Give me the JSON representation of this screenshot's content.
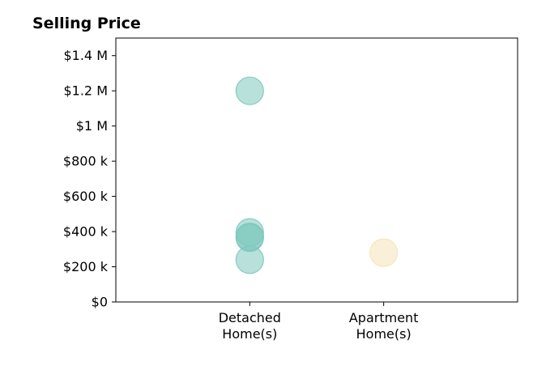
{
  "chart_data": {
    "type": "scatter",
    "title": "Selling Price",
    "xlabel": "",
    "ylabel": "",
    "categories": [
      [
        "Detached",
        "Home(s)"
      ],
      [
        "Apartment",
        "Home(s)"
      ]
    ],
    "yticks": [
      {
        "value": 0,
        "label": "$0"
      },
      {
        "value": 200000,
        "label": "$200 k"
      },
      {
        "value": 400000,
        "label": "$400 k"
      },
      {
        "value": 600000,
        "label": "$600 k"
      },
      {
        "value": 800000,
        "label": "$800 k"
      },
      {
        "value": 1000000,
        "label": "$1 M"
      },
      {
        "value": 1200000,
        "label": "$1.2 M"
      },
      {
        "value": 1400000,
        "label": "$1.4 M"
      }
    ],
    "ylim": [
      0,
      1500000
    ],
    "xlim": [
      0,
      3
    ],
    "grid": false,
    "legend": "none",
    "series": [
      {
        "category_index": 0,
        "color": "#7ec8bd",
        "values": [
          1200000,
          395000,
          365000,
          370000,
          240000
        ]
      },
      {
        "category_index": 1,
        "color": "#f5e3b8",
        "values": [
          280000
        ]
      }
    ]
  }
}
